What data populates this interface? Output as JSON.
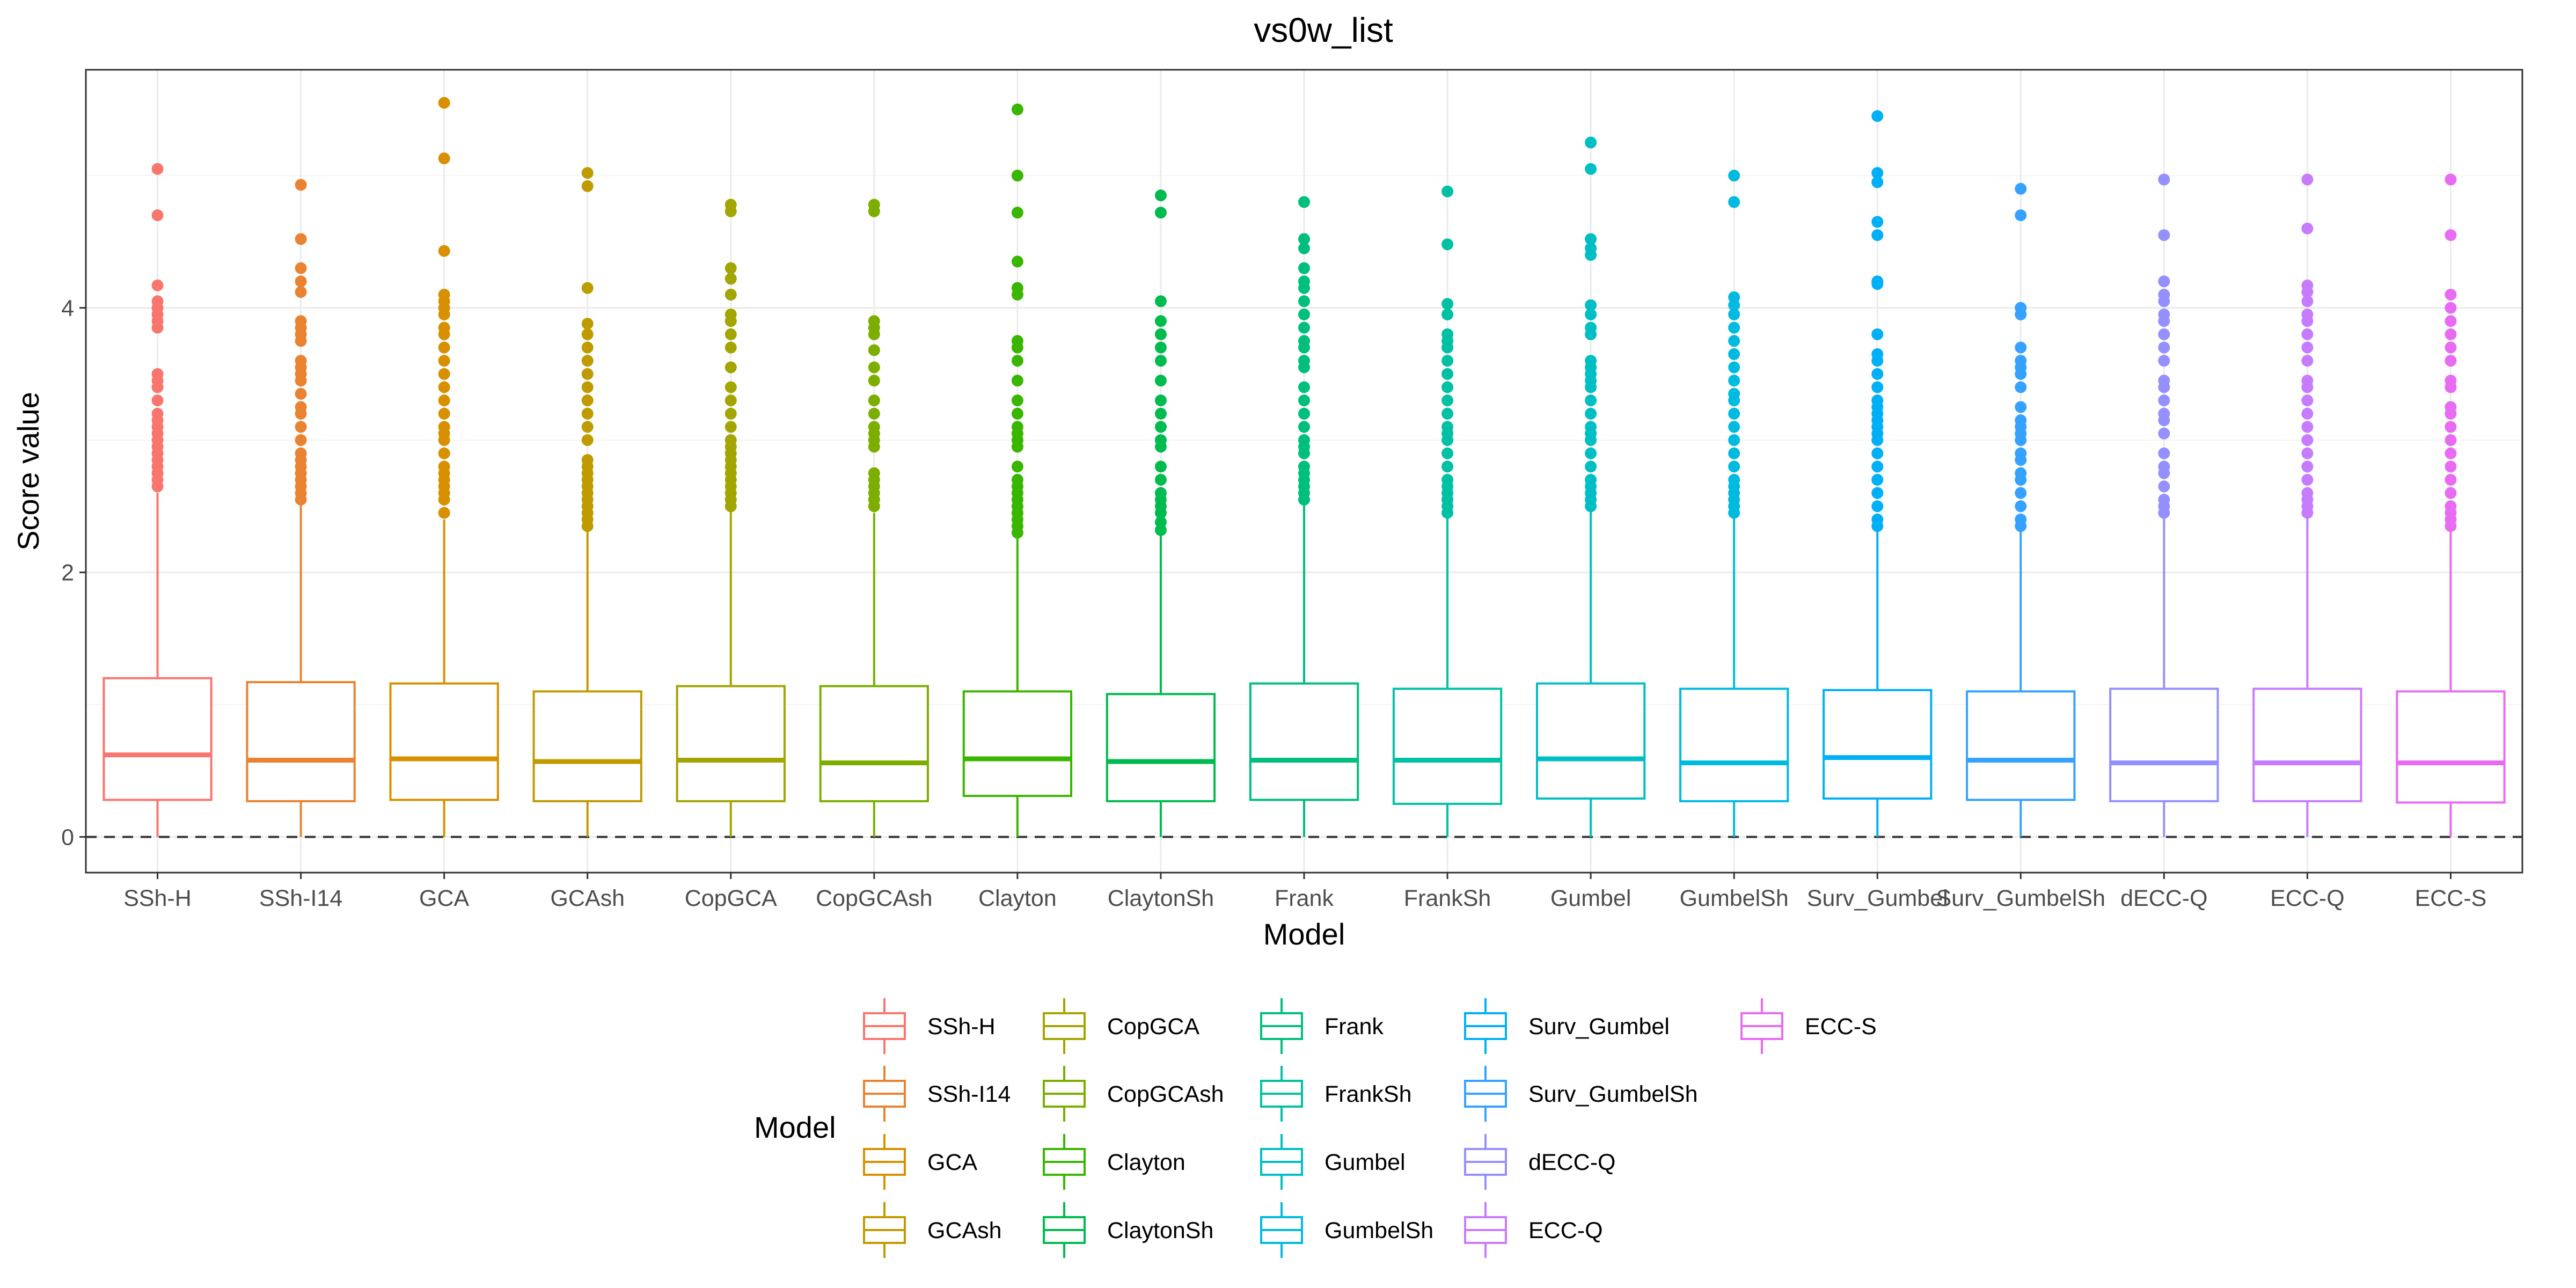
{
  "chart_data": {
    "type": "boxplot",
    "title": "vs0w_list",
    "xlabel": "Model",
    "ylabel": "Score value",
    "ylim": [
      -0.27,
      5.8
    ],
    "yticks": [
      0,
      2,
      4
    ],
    "hline": {
      "y": 0,
      "style": "dashed"
    },
    "grid": true,
    "legend": {
      "title": "Model",
      "position": "bottom",
      "columns": 5
    },
    "categories": [
      "SSh-H",
      "SSh-I14",
      "GCA",
      "GCAsh",
      "CopGCA",
      "CopGCAsh",
      "Clayton",
      "ClaytonSh",
      "Frank",
      "FrankSh",
      "Gumbel",
      "GumbelSh",
      "Surv_Gumbel",
      "Surv_GumbelSh",
      "dECC-Q",
      "ECC-Q",
      "ECC-S"
    ],
    "x_tick_labels": [
      "SSh-H",
      "SSh-I14",
      "GCA",
      "GCAsh",
      "CopGCA",
      "CopGCAsh",
      "Clayton",
      "ClaytonSh",
      "Frank",
      "FrankSh",
      "Gumbel",
      "GumbelSh",
      "Surv_Gumbel",
      "Surv_GumbelSh",
      "dECC-Q",
      "ECC-Q",
      "ECC-S"
    ],
    "series": [
      {
        "name": "SSh-H",
        "color": "#F8766D",
        "q1": 0.28,
        "median": 0.62,
        "q3": 1.2,
        "whisker_low": 0,
        "whisker_high": 2.6,
        "outliers": [
          2.65,
          2.7,
          2.75,
          2.8,
          2.85,
          2.9,
          2.95,
          3.0,
          3.05,
          3.1,
          3.15,
          3.2,
          3.3,
          3.4,
          3.45,
          3.5,
          3.85,
          3.9,
          3.95,
          4.0,
          4.05,
          4.17,
          4.7,
          5.05
        ]
      },
      {
        "name": "SSh-I14",
        "color": "#EA8331",
        "q1": 0.27,
        "median": 0.58,
        "q3": 1.17,
        "whisker_low": 0,
        "whisker_high": 2.52,
        "outliers": [
          2.55,
          2.6,
          2.65,
          2.7,
          2.75,
          2.8,
          2.85,
          2.9,
          3.0,
          3.1,
          3.2,
          3.25,
          3.35,
          3.45,
          3.5,
          3.55,
          3.6,
          3.75,
          3.8,
          3.85,
          3.9,
          4.12,
          4.2,
          4.3,
          4.52,
          4.93
        ]
      },
      {
        "name": "GCA",
        "color": "#D89000",
        "q1": 0.28,
        "median": 0.59,
        "q3": 1.16,
        "whisker_low": 0,
        "whisker_high": 2.4,
        "outliers": [
          2.45,
          2.55,
          2.6,
          2.65,
          2.7,
          2.75,
          2.8,
          2.9,
          3.0,
          3.05,
          3.1,
          3.2,
          3.3,
          3.4,
          3.5,
          3.6,
          3.7,
          3.8,
          3.85,
          3.95,
          4.0,
          4.05,
          4.1,
          4.43,
          5.13,
          5.55
        ]
      },
      {
        "name": "GCAsh",
        "color": "#C09B00",
        "q1": 0.27,
        "median": 0.57,
        "q3": 1.1,
        "whisker_low": 0,
        "whisker_high": 2.32,
        "outliers": [
          2.35,
          2.4,
          2.45,
          2.5,
          2.55,
          2.6,
          2.65,
          2.7,
          2.75,
          2.8,
          2.85,
          3.0,
          3.1,
          3.2,
          3.3,
          3.4,
          3.5,
          3.6,
          3.7,
          3.8,
          3.88,
          4.15,
          4.92,
          5.02
        ]
      },
      {
        "name": "CopGCA",
        "color": "#A3A500",
        "q1": 0.27,
        "median": 0.58,
        "q3": 1.14,
        "whisker_low": 0,
        "whisker_high": 2.48,
        "outliers": [
          2.5,
          2.55,
          2.6,
          2.65,
          2.7,
          2.75,
          2.8,
          2.85,
          2.9,
          2.95,
          3.0,
          3.1,
          3.2,
          3.3,
          3.4,
          3.55,
          3.7,
          3.8,
          3.9,
          3.95,
          4.1,
          4.22,
          4.3,
          4.73,
          4.78
        ]
      },
      {
        "name": "CopGCAsh",
        "color": "#7CAE00",
        "q1": 0.27,
        "median": 0.56,
        "q3": 1.14,
        "whisker_low": 0,
        "whisker_high": 2.45,
        "outliers": [
          2.5,
          2.55,
          2.6,
          2.65,
          2.7,
          2.75,
          2.95,
          3.0,
          3.05,
          3.1,
          3.2,
          3.3,
          3.45,
          3.55,
          3.68,
          3.8,
          3.85,
          3.9,
          4.73,
          4.78
        ]
      },
      {
        "name": "Clayton",
        "color": "#39B600",
        "q1": 0.31,
        "median": 0.59,
        "q3": 1.1,
        "whisker_low": 0,
        "whisker_high": 2.28,
        "outliers": [
          2.3,
          2.35,
          2.4,
          2.45,
          2.5,
          2.55,
          2.6,
          2.65,
          2.7,
          2.8,
          2.95,
          3.0,
          3.05,
          3.1,
          3.2,
          3.3,
          3.45,
          3.6,
          3.7,
          3.75,
          4.1,
          4.15,
          4.35,
          4.72,
          5.0,
          5.5
        ]
      },
      {
        "name": "ClaytonSh",
        "color": "#00BB4E",
        "q1": 0.27,
        "median": 0.57,
        "q3": 1.08,
        "whisker_low": 0,
        "whisker_high": 2.3,
        "outliers": [
          2.32,
          2.38,
          2.45,
          2.5,
          2.55,
          2.6,
          2.7,
          2.8,
          2.95,
          3.0,
          3.1,
          3.2,
          3.3,
          3.45,
          3.6,
          3.7,
          3.8,
          3.9,
          4.05,
          4.72,
          4.85
        ]
      },
      {
        "name": "Frank",
        "color": "#00BF7D",
        "q1": 0.28,
        "median": 0.58,
        "q3": 1.16,
        "whisker_low": 0,
        "whisker_high": 2.52,
        "outliers": [
          2.55,
          2.6,
          2.65,
          2.7,
          2.75,
          2.8,
          2.9,
          2.95,
          3.0,
          3.1,
          3.2,
          3.3,
          3.4,
          3.55,
          3.6,
          3.7,
          3.75,
          3.85,
          3.95,
          4.05,
          4.15,
          4.2,
          4.3,
          4.45,
          4.52,
          4.8
        ]
      },
      {
        "name": "FrankSh",
        "color": "#00C1A3",
        "q1": 0.25,
        "median": 0.58,
        "q3": 1.12,
        "whisker_low": 0,
        "whisker_high": 2.42,
        "outliers": [
          2.45,
          2.5,
          2.55,
          2.6,
          2.65,
          2.7,
          2.8,
          2.9,
          3.0,
          3.05,
          3.1,
          3.2,
          3.3,
          3.4,
          3.5,
          3.6,
          3.7,
          3.75,
          3.8,
          3.95,
          4.03,
          4.48,
          4.88
        ]
      },
      {
        "name": "Gumbel",
        "color": "#00BFC4",
        "q1": 0.29,
        "median": 0.59,
        "q3": 1.16,
        "whisker_low": 0,
        "whisker_high": 2.48,
        "outliers": [
          2.5,
          2.55,
          2.6,
          2.65,
          2.7,
          2.8,
          2.9,
          3.0,
          3.05,
          3.1,
          3.2,
          3.3,
          3.4,
          3.45,
          3.5,
          3.55,
          3.6,
          3.8,
          3.85,
          3.95,
          4.02,
          4.4,
          4.45,
          4.52,
          5.05,
          5.25
        ]
      },
      {
        "name": "GumbelSh",
        "color": "#00BAE0",
        "q1": 0.27,
        "median": 0.56,
        "q3": 1.12,
        "whisker_low": 0,
        "whisker_high": 2.42,
        "outliers": [
          2.45,
          2.5,
          2.55,
          2.6,
          2.65,
          2.7,
          2.8,
          2.9,
          3.0,
          3.1,
          3.2,
          3.3,
          3.35,
          3.45,
          3.55,
          3.65,
          3.75,
          3.85,
          3.95,
          4.02,
          4.08,
          4.8,
          5.0
        ]
      },
      {
        "name": "Surv_Gumbel",
        "color": "#00B0F6",
        "q1": 0.29,
        "median": 0.6,
        "q3": 1.11,
        "whisker_low": 0,
        "whisker_high": 2.33,
        "outliers": [
          2.35,
          2.4,
          2.5,
          2.6,
          2.7,
          2.8,
          2.9,
          3.0,
          3.05,
          3.1,
          3.15,
          3.2,
          3.25,
          3.3,
          3.4,
          3.5,
          3.6,
          3.65,
          3.8,
          4.18,
          4.2,
          4.55,
          4.65,
          4.95,
          5.02,
          5.45
        ]
      },
      {
        "name": "Surv_GumbelSh",
        "color": "#35A2FF",
        "q1": 0.28,
        "median": 0.58,
        "q3": 1.1,
        "whisker_low": 0,
        "whisker_high": 2.33,
        "outliers": [
          2.35,
          2.4,
          2.5,
          2.6,
          2.7,
          2.75,
          2.85,
          2.9,
          3.0,
          3.05,
          3.1,
          3.15,
          3.25,
          3.4,
          3.5,
          3.55,
          3.6,
          3.7,
          3.95,
          4.0,
          4.7,
          4.9
        ]
      },
      {
        "name": "dECC-Q",
        "color": "#9590FF",
        "q1": 0.27,
        "median": 0.56,
        "q3": 1.12,
        "whisker_low": 0,
        "whisker_high": 2.42,
        "outliers": [
          2.45,
          2.5,
          2.55,
          2.65,
          2.75,
          2.8,
          2.9,
          3.05,
          3.15,
          3.2,
          3.3,
          3.4,
          3.45,
          3.6,
          3.7,
          3.8,
          3.9,
          3.95,
          4.05,
          4.1,
          4.2,
          4.55,
          4.97
        ]
      },
      {
        "name": "ECC-Q",
        "color": "#C77CFF",
        "q1": 0.27,
        "median": 0.56,
        "q3": 1.12,
        "whisker_low": 0,
        "whisker_high": 2.42,
        "outliers": [
          2.45,
          2.5,
          2.55,
          2.6,
          2.7,
          2.8,
          2.9,
          3.0,
          3.1,
          3.2,
          3.3,
          3.4,
          3.45,
          3.6,
          3.7,
          3.8,
          3.9,
          3.95,
          4.05,
          4.12,
          4.17,
          4.6,
          4.97
        ]
      },
      {
        "name": "ECC-S",
        "color": "#E76BF3",
        "q1": 0.26,
        "median": 0.56,
        "q3": 1.1,
        "whisker_low": 0,
        "whisker_high": 2.33,
        "outliers": [
          2.35,
          2.4,
          2.45,
          2.5,
          2.6,
          2.7,
          2.8,
          2.9,
          3.0,
          3.1,
          3.2,
          3.25,
          3.4,
          3.45,
          3.6,
          3.7,
          3.8,
          3.9,
          4.0,
          4.1,
          4.55,
          4.97
        ]
      }
    ]
  }
}
